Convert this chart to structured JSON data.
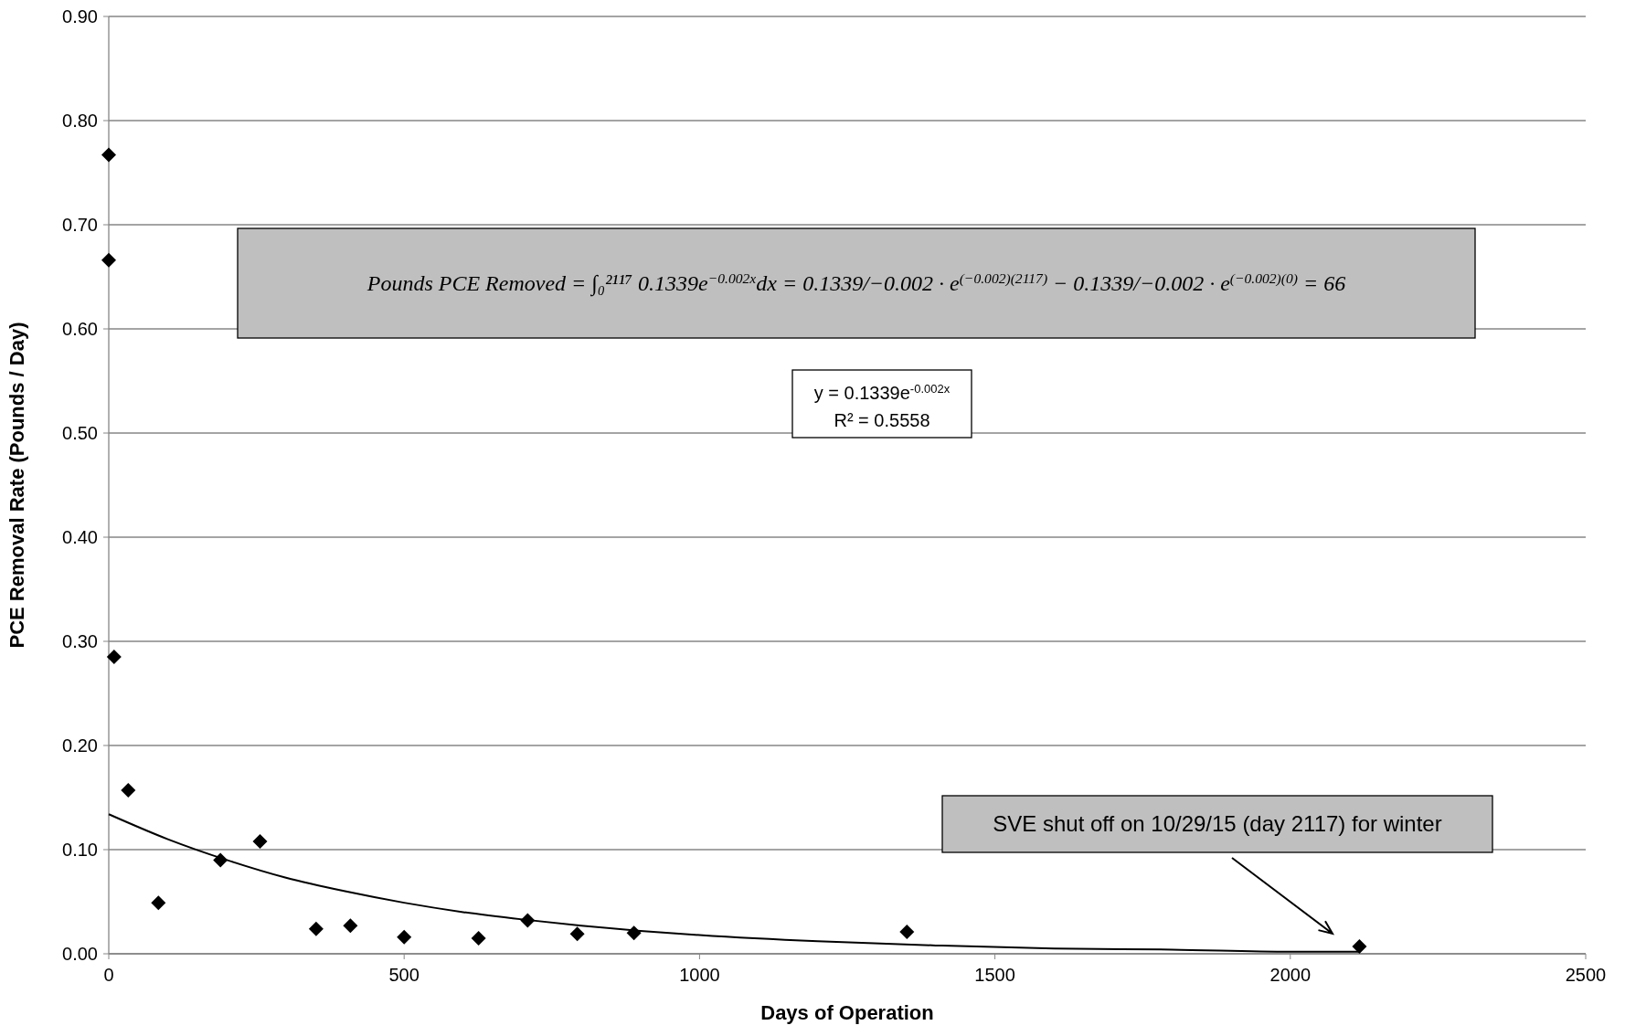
{
  "chart_data": {
    "type": "scatter",
    "xlabel": "Days of Operation",
    "ylabel": "PCE Removal Rate (Pounds / Day)",
    "xlim": [
      0,
      2500
    ],
    "xticks": [
      0,
      500,
      1000,
      1500,
      2000,
      2500
    ],
    "ylim": [
      0,
      0.9
    ],
    "yticks": [
      {
        "value": 0,
        "label": "0.00"
      },
      {
        "value": 0.1,
        "label": "0.10"
      },
      {
        "value": 0.2,
        "label": "0.20"
      },
      {
        "value": 0.3,
        "label": "0.30"
      },
      {
        "value": 0.4,
        "label": "0.40"
      },
      {
        "value": 0.5,
        "label": "0.50"
      },
      {
        "value": 0.6,
        "label": "0.60"
      },
      {
        "value": 0.7,
        "label": "0.70"
      },
      {
        "value": 0.8,
        "label": "0.80"
      },
      {
        "value": 0.9,
        "label": "0.90"
      }
    ],
    "grid": "y",
    "series": [
      {
        "marker": "diamond",
        "color": "#000000",
        "x": [
          0,
          0,
          9,
          33,
          84,
          189,
          256,
          351,
          409,
          500,
          626,
          709,
          793,
          889,
          1351,
          2117
        ],
        "values": [
          0.767,
          0.666,
          0.285,
          0.157,
          0.049,
          0.09,
          0.108,
          0.024,
          0.027,
          0.016,
          0.015,
          0.032,
          0.019,
          0.02,
          0.021,
          0.007
        ]
      },
      {
        "type": "line",
        "marker": "none",
        "line_style": "solid",
        "color": "#000000",
        "x": [
          0,
          100,
          200,
          300,
          400,
          500,
          600,
          700,
          800,
          900,
          1000,
          1200,
          1400,
          1600,
          1800,
          2000,
          2117
        ],
        "values": [
          0.134,
          0.11,
          0.09,
          0.073,
          0.06,
          0.049,
          0.04,
          0.033,
          0.027,
          0.022,
          0.018,
          0.012,
          0.008,
          0.005,
          0.004,
          0.002,
          0.002
        ]
      }
    ],
    "annotations": [
      "Pounds PCE Removed = ∫₀²¹¹⁷ 0.1339e$^{−0.002x}$dx = 0.1339/−0.002 · e$^{(−0.002)(2117)}$ − 0.1339/−0.002 · e$^{(−0.002)(0)}$ = 66",
      "y = 0.1339e$^{-0.002x}$",
      "R² = 0.5558",
      "SVE shut off on 10/29/15 (day 2117) for winter"
    ]
  }
}
